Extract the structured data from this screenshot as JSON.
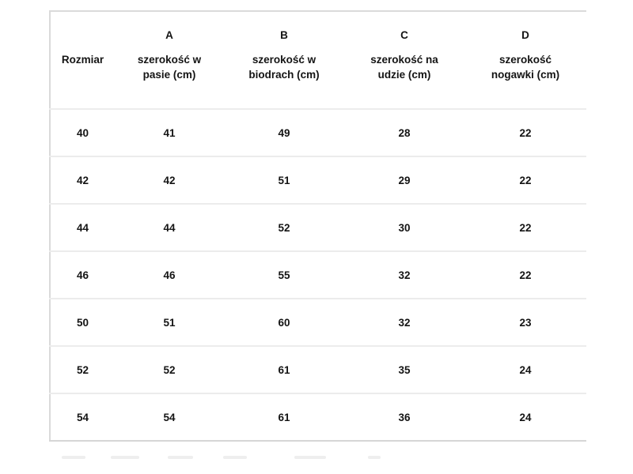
{
  "table": {
    "row_label_header": "Rozmiar",
    "columns": [
      {
        "letter": "A",
        "name": "szerokość w pasie (cm)"
      },
      {
        "letter": "B",
        "name": "szerokość w biodrach (cm)"
      },
      {
        "letter": "C",
        "name": "szerokość na udzie (cm)"
      },
      {
        "letter": "D",
        "name": "szerokość nogawki (cm)"
      }
    ],
    "rows": [
      {
        "size": "40",
        "values": [
          "41",
          "49",
          "28",
          "22"
        ]
      },
      {
        "size": "42",
        "values": [
          "42",
          "51",
          "29",
          "22"
        ]
      },
      {
        "size": "44",
        "values": [
          "44",
          "52",
          "30",
          "22"
        ]
      },
      {
        "size": "46",
        "values": [
          "46",
          "55",
          "32",
          "22"
        ]
      },
      {
        "size": "50",
        "values": [
          "51",
          "60",
          "32",
          "23"
        ]
      },
      {
        "size": "52",
        "values": [
          "52",
          "61",
          "35",
          "24"
        ]
      },
      {
        "size": "54",
        "values": [
          "54",
          "61",
          "36",
          "24"
        ]
      }
    ]
  },
  "chart_data": {
    "type": "table",
    "columns": [
      "Rozmiar",
      "A szerokość w pasie (cm)",
      "B szerokość w biodrach (cm)",
      "C szerokość na udzie (cm)",
      "D szerokość nogawki (cm)"
    ],
    "rows": [
      [
        40,
        41,
        49,
        28,
        22
      ],
      [
        42,
        42,
        51,
        29,
        22
      ],
      [
        44,
        44,
        52,
        30,
        22
      ],
      [
        46,
        46,
        55,
        32,
        22
      ],
      [
        50,
        51,
        60,
        32,
        23
      ],
      [
        52,
        52,
        61,
        35,
        24
      ],
      [
        54,
        54,
        61,
        36,
        24
      ]
    ]
  },
  "colors": {
    "background": "#ffffff",
    "text": "#141414",
    "outer_border": "#dadada",
    "row_line": "#ececec"
  }
}
